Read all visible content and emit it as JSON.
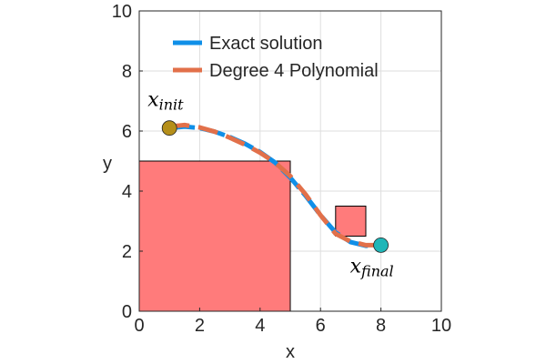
{
  "chart_data": {
    "type": "line",
    "xlabel": "x",
    "ylabel": "y",
    "xlim": [
      0,
      10
    ],
    "ylim": [
      0,
      10
    ],
    "xticks": [
      0,
      2,
      4,
      6,
      8,
      10
    ],
    "yticks": [
      0,
      2,
      4,
      6,
      8,
      10
    ],
    "grid": true,
    "legend_position": "top-left",
    "series": [
      {
        "name": "Exact solution",
        "color": "#0f8fe8",
        "style": "solid",
        "x": [
          1.0,
          1.5,
          2.0,
          2.5,
          3.0,
          3.5,
          4.0,
          4.5,
          5.0,
          5.5,
          6.0,
          6.5,
          7.0,
          7.5,
          8.0
        ],
        "y": [
          6.1,
          6.15,
          6.1,
          5.98,
          5.8,
          5.58,
          5.3,
          4.95,
          4.45,
          3.85,
          3.2,
          2.62,
          2.3,
          2.18,
          2.2
        ]
      },
      {
        "name": "Degree 4 Polynomial",
        "color": "#e2704a",
        "style": "dashed",
        "x": [
          1.0,
          1.5,
          2.0,
          2.5,
          3.0,
          3.5,
          4.0,
          4.5,
          5.0,
          5.5,
          6.0,
          6.5,
          7.0,
          7.5,
          8.0
        ],
        "y": [
          6.15,
          6.2,
          6.12,
          5.98,
          5.78,
          5.55,
          5.28,
          4.95,
          4.5,
          3.9,
          3.2,
          2.58,
          2.32,
          2.2,
          2.2
        ]
      }
    ],
    "obstacles": [
      {
        "x": [
          0,
          5
        ],
        "y": [
          0,
          5
        ],
        "color": "#ff7b7b"
      },
      {
        "x": [
          6.5,
          7.5
        ],
        "y": [
          2.5,
          3.5
        ],
        "color": "#ff7b7b"
      }
    ],
    "points": [
      {
        "label_base": "x",
        "label_sub": "init",
        "x": 1.0,
        "y": 6.1,
        "color": "#b58f1a"
      },
      {
        "label_base": "x",
        "label_sub": "final",
        "x": 8.0,
        "y": 2.2,
        "color": "#1fb6b8"
      }
    ]
  }
}
